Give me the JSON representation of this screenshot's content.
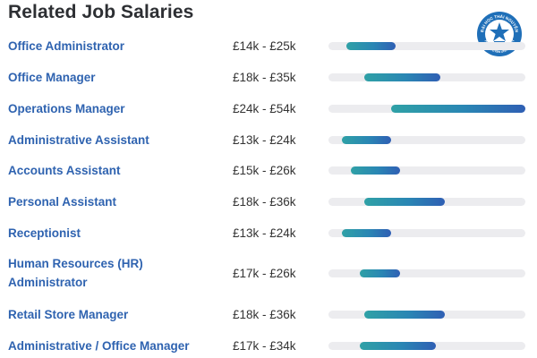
{
  "section": {
    "title": "Related Job Salaries"
  },
  "logo": {
    "ring_text": "ĐẠI HỌC THÁI NGUYÊN",
    "bottom_text": "THAI NGUYEN UNIVERSITY",
    "color": "#1f6fb8"
  },
  "colors": {
    "link": "#2f63b0",
    "bar_start": "#2fa1a6",
    "bar_end": "#2f5fb4",
    "track": "#ececef"
  },
  "jobs": [
    {
      "title": "Office Administrator",
      "salary": "£14k - £25k",
      "min_k": 14,
      "max_k": 25
    },
    {
      "title": "Office Manager",
      "salary": "£18k - £35k",
      "min_k": 18,
      "max_k": 35
    },
    {
      "title": "Operations Manager",
      "salary": "£24k - £54k",
      "min_k": 24,
      "max_k": 54
    },
    {
      "title": "Administrative Assistant",
      "salary": "£13k - £24k",
      "min_k": 13,
      "max_k": 24
    },
    {
      "title": "Accounts Assistant",
      "salary": "£15k - £26k",
      "min_k": 15,
      "max_k": 26
    },
    {
      "title": "Personal Assistant",
      "salary": "£18k - £36k",
      "min_k": 18,
      "max_k": 36
    },
    {
      "title": "Receptionist",
      "salary": "£13k - £24k",
      "min_k": 13,
      "max_k": 24
    },
    {
      "title": "Human Resources (HR) Administrator",
      "salary": "£17k - £26k",
      "min_k": 17,
      "max_k": 26
    },
    {
      "title": "Retail Store Manager",
      "salary": "£18k - £36k",
      "min_k": 18,
      "max_k": 36
    },
    {
      "title": "Administrative / Office Manager",
      "salary": "£17k - £34k",
      "min_k": 17,
      "max_k": 34
    }
  ]
}
